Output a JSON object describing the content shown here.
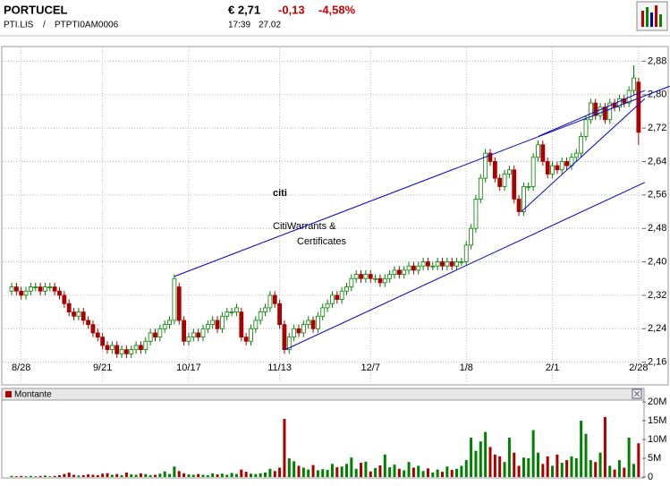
{
  "header": {
    "name": "PORTUCEL",
    "symbol": "PTI.LIS",
    "separator": "/",
    "isin": "PTPTI0AM0006",
    "price": "€ 2,71",
    "change": "-0,13",
    "change_pct": "-4,58%",
    "time": "17:39",
    "date": "27.02"
  },
  "chart_data": [
    {
      "type": "candlestick",
      "up_color": "#008000",
      "down_color": "#aa0000",
      "line_color": "#0000cc",
      "grid": true,
      "watermark": [
        "citi",
        "CitiWarrants &",
        "Certificates"
      ],
      "ylim": [
        2.11,
        2.915
      ],
      "yticks": [
        {
          "value": 2.16,
          "label": "2,16"
        },
        {
          "value": 2.24,
          "label": "2,24"
        },
        {
          "value": 2.32,
          "label": "2,32"
        },
        {
          "value": 2.4,
          "label": "2,40"
        },
        {
          "value": 2.48,
          "label": "2,48"
        },
        {
          "value": 2.56,
          "label": "2,56"
        },
        {
          "value": 2.64,
          "label": "2,64"
        },
        {
          "value": 2.72,
          "label": "2,72"
        },
        {
          "value": 2.8,
          "label": "2,80"
        },
        {
          "value": 2.88,
          "label": "2,88"
        }
      ],
      "categories": [
        null,
        null,
        "8/28",
        null,
        null,
        null,
        null,
        null,
        null,
        null,
        null,
        null,
        null,
        null,
        null,
        null,
        null,
        null,
        null,
        "9/21",
        null,
        null,
        null,
        null,
        null,
        null,
        null,
        null,
        null,
        null,
        null,
        null,
        null,
        null,
        null,
        null,
        null,
        "10/17",
        null,
        null,
        null,
        null,
        null,
        null,
        null,
        null,
        null,
        null,
        null,
        null,
        null,
        null,
        null,
        null,
        null,
        null,
        "11/13",
        null,
        null,
        null,
        null,
        null,
        null,
        null,
        null,
        null,
        null,
        null,
        null,
        null,
        null,
        null,
        null,
        null,
        null,
        "12/7",
        null,
        null,
        null,
        null,
        null,
        null,
        null,
        null,
        null,
        null,
        null,
        null,
        null,
        null,
        null,
        null,
        null,
        null,
        null,
        "1/8",
        null,
        null,
        null,
        null,
        null,
        null,
        null,
        null,
        null,
        null,
        null,
        null,
        null,
        null,
        null,
        null,
        null,
        "2/1",
        null,
        null,
        null,
        null,
        null,
        null,
        null,
        null,
        null,
        null,
        null,
        null,
        null,
        null,
        null,
        null,
        null,
        "2/28"
      ],
      "open": [
        2.33,
        2.34,
        2.33,
        2.32,
        2.33,
        2.34,
        2.34,
        2.33,
        2.34,
        2.34,
        2.33,
        2.32,
        2.3,
        2.28,
        2.27,
        2.28,
        2.26,
        2.25,
        2.23,
        2.22,
        2.2,
        2.19,
        2.2,
        2.18,
        2.19,
        2.18,
        2.19,
        2.2,
        2.19,
        2.21,
        2.23,
        2.22,
        2.24,
        2.25,
        2.26,
        2.34,
        2.26,
        2.21,
        2.22,
        2.23,
        2.22,
        2.24,
        2.25,
        2.26,
        2.24,
        2.27,
        2.28,
        2.28,
        2.28,
        2.22,
        2.21,
        2.24,
        2.26,
        2.28,
        2.29,
        2.32,
        2.3,
        2.25,
        2.19,
        2.22,
        2.24,
        2.23,
        2.25,
        2.26,
        2.24,
        2.27,
        2.29,
        2.3,
        2.32,
        2.31,
        2.33,
        2.34,
        2.36,
        2.37,
        2.36,
        2.37,
        2.36,
        2.36,
        2.35,
        2.36,
        2.37,
        2.38,
        2.37,
        2.38,
        2.39,
        2.38,
        2.39,
        2.4,
        2.39,
        2.39,
        2.4,
        2.39,
        2.4,
        2.39,
        2.4,
        2.4,
        2.44,
        2.48,
        2.55,
        2.6,
        2.66,
        2.64,
        2.6,
        2.58,
        2.61,
        2.62,
        2.55,
        2.52,
        2.58,
        2.58,
        2.65,
        2.68,
        2.64,
        2.61,
        2.63,
        2.62,
        2.64,
        2.63,
        2.65,
        2.66,
        2.7,
        2.74,
        2.78,
        2.75,
        2.77,
        2.74,
        2.78,
        2.77,
        2.79,
        2.78,
        2.81,
        2.83
      ],
      "high": [
        2.35,
        2.35,
        2.34,
        2.34,
        2.35,
        2.35,
        2.35,
        2.35,
        2.35,
        2.35,
        2.34,
        2.33,
        2.31,
        2.29,
        2.29,
        2.29,
        2.27,
        2.26,
        2.24,
        2.23,
        2.21,
        2.21,
        2.21,
        2.2,
        2.2,
        2.2,
        2.21,
        2.21,
        2.22,
        2.24,
        2.24,
        2.25,
        2.26,
        2.27,
        2.37,
        2.35,
        2.27,
        2.23,
        2.24,
        2.24,
        2.25,
        2.26,
        2.27,
        2.27,
        2.28,
        2.29,
        2.29,
        2.3,
        2.29,
        2.23,
        2.25,
        2.27,
        2.29,
        2.3,
        2.33,
        2.33,
        2.31,
        2.26,
        2.23,
        2.25,
        2.25,
        2.26,
        2.27,
        2.27,
        2.28,
        2.3,
        2.31,
        2.33,
        2.33,
        2.34,
        2.35,
        2.37,
        2.38,
        2.38,
        2.38,
        2.38,
        2.37,
        2.37,
        2.37,
        2.38,
        2.39,
        2.39,
        2.39,
        2.4,
        2.4,
        2.4,
        2.41,
        2.41,
        2.4,
        2.41,
        2.41,
        2.41,
        2.41,
        2.41,
        2.41,
        2.45,
        2.49,
        2.56,
        2.61,
        2.67,
        2.67,
        2.65,
        2.61,
        2.62,
        2.63,
        2.63,
        2.56,
        2.59,
        2.59,
        2.66,
        2.69,
        2.69,
        2.65,
        2.64,
        2.64,
        2.65,
        2.65,
        2.66,
        2.67,
        2.71,
        2.75,
        2.79,
        2.79,
        2.78,
        2.78,
        2.79,
        2.79,
        2.8,
        2.8,
        2.82,
        2.87,
        2.84
      ],
      "low": [
        2.32,
        2.32,
        2.31,
        2.31,
        2.32,
        2.33,
        2.32,
        2.32,
        2.33,
        2.32,
        2.31,
        2.29,
        2.27,
        2.26,
        2.26,
        2.25,
        2.24,
        2.22,
        2.21,
        2.19,
        2.18,
        2.18,
        2.17,
        2.17,
        2.17,
        2.17,
        2.18,
        2.18,
        2.18,
        2.2,
        2.21,
        2.21,
        2.23,
        2.24,
        2.25,
        2.25,
        2.2,
        2.2,
        2.21,
        2.21,
        2.21,
        2.23,
        2.24,
        2.23,
        2.23,
        2.26,
        2.27,
        2.27,
        2.21,
        2.2,
        2.2,
        2.23,
        2.25,
        2.27,
        2.28,
        2.29,
        2.24,
        2.18,
        2.18,
        2.21,
        2.22,
        2.22,
        2.24,
        2.23,
        2.23,
        2.26,
        2.28,
        2.29,
        2.3,
        2.3,
        2.32,
        2.33,
        2.35,
        2.35,
        2.35,
        2.35,
        2.35,
        2.34,
        2.34,
        2.35,
        2.36,
        2.36,
        2.36,
        2.37,
        2.37,
        2.37,
        2.38,
        2.38,
        2.38,
        2.38,
        2.38,
        2.38,
        2.38,
        2.38,
        2.39,
        2.39,
        2.43,
        2.47,
        2.54,
        2.59,
        2.63,
        2.59,
        2.57,
        2.57,
        2.6,
        2.54,
        2.51,
        2.51,
        2.57,
        2.57,
        2.64,
        2.63,
        2.6,
        2.6,
        2.61,
        2.61,
        2.62,
        2.62,
        2.64,
        2.65,
        2.69,
        2.73,
        2.74,
        2.74,
        2.73,
        2.73,
        2.76,
        2.76,
        2.77,
        2.77,
        2.8,
        2.68
      ],
      "close": [
        2.34,
        2.33,
        2.32,
        2.33,
        2.34,
        2.34,
        2.33,
        2.34,
        2.34,
        2.33,
        2.32,
        2.3,
        2.28,
        2.27,
        2.28,
        2.26,
        2.25,
        2.23,
        2.22,
        2.2,
        2.19,
        2.2,
        2.18,
        2.19,
        2.18,
        2.19,
        2.2,
        2.19,
        2.21,
        2.23,
        2.22,
        2.24,
        2.25,
        2.26,
        2.36,
        2.26,
        2.21,
        2.22,
        2.23,
        2.22,
        2.24,
        2.25,
        2.26,
        2.24,
        2.27,
        2.28,
        2.28,
        2.29,
        2.22,
        2.21,
        2.24,
        2.26,
        2.28,
        2.29,
        2.32,
        2.3,
        2.25,
        2.19,
        2.22,
        2.24,
        2.23,
        2.25,
        2.26,
        2.24,
        2.27,
        2.29,
        2.3,
        2.32,
        2.31,
        2.33,
        2.34,
        2.36,
        2.37,
        2.36,
        2.37,
        2.36,
        2.36,
        2.35,
        2.36,
        2.37,
        2.38,
        2.37,
        2.38,
        2.39,
        2.38,
        2.39,
        2.4,
        2.39,
        2.39,
        2.4,
        2.39,
        2.4,
        2.39,
        2.4,
        2.4,
        2.44,
        2.48,
        2.55,
        2.6,
        2.66,
        2.64,
        2.6,
        2.58,
        2.61,
        2.62,
        2.55,
        2.52,
        2.58,
        2.58,
        2.65,
        2.68,
        2.64,
        2.61,
        2.63,
        2.62,
        2.64,
        2.63,
        2.65,
        2.66,
        2.7,
        2.74,
        2.78,
        2.75,
        2.77,
        2.74,
        2.78,
        2.77,
        2.79,
        2.78,
        2.81,
        2.84,
        2.71
      ],
      "trendlines": [
        {
          "x": [
            34,
            137.5
          ],
          "y": [
            2.365,
            2.82
          ]
        },
        {
          "x": [
            57.2,
            132.3
          ],
          "y": [
            2.19,
            2.59
          ]
        },
        {
          "x": [
            106.5,
            132.3
          ],
          "y": [
            2.52,
            2.79
          ]
        },
        {
          "x": [
            110,
            132.3
          ],
          "y": [
            2.7,
            2.81
          ]
        }
      ]
    },
    {
      "type": "bar",
      "ylim": [
        0,
        20.5
      ],
      "yticks": [
        0,
        {
          "value": 5,
          "label": "5M"
        },
        {
          "value": 10,
          "label": "10M"
        },
        {
          "value": 15,
          "label": "15M"
        },
        {
          "value": 20,
          "label": "20M"
        }
      ],
      "series": [
        {
          "name": "Montante",
          "color": "#aa0000",
          "up_color": "#008000",
          "values": [
            0.3,
            0.2,
            0.3,
            0.2,
            0.3,
            0.2,
            0.3,
            0.4,
            0.2,
            0.3,
            0.5,
            0.8,
            1.2,
            0.6,
            0.4,
            0.5,
            0.7,
            0.6,
            0.5,
            0.9,
            1.0,
            0.6,
            0.8,
            0.5,
            1.2,
            0.7,
            0.6,
            1.0,
            0.8,
            0.5,
            0.6,
            0.9,
            1.5,
            0.8,
            2.8,
            1.6,
            1.0,
            0.7,
            0.6,
            0.8,
            0.6,
            0.5,
            1.0,
            0.7,
            0.9,
            0.6,
            1.1,
            0.8,
            2.0,
            1.4,
            0.9,
            0.8,
            1.0,
            1.2,
            2.2,
            1.6,
            2.5,
            15.5,
            5.0,
            4.2,
            3.0,
            2.5,
            2.0,
            3.2,
            1.8,
            2.1,
            1.9,
            3.5,
            2.6,
            2.8,
            3.5,
            5.2,
            2.2,
            3.8,
            4.1,
            1.5,
            2.4,
            3.1,
            6.0,
            2.6,
            3.3,
            2.2,
            1.8,
            4.0,
            2.5,
            3.0,
            1.6,
            2.3,
            1.2,
            2.0,
            1.4,
            2.8,
            1.9,
            2.2,
            3.0,
            4.5,
            10.5,
            7.0,
            9.5,
            12.0,
            8.0,
            6.0,
            5.5,
            4.0,
            10.5,
            6.5,
            3.0,
            5.2,
            5.0,
            12.5,
            6.5,
            3.5,
            5.5,
            3.0,
            6.0,
            3.8,
            4.5,
            5.5,
            5.0,
            15.0,
            11.5,
            4.5,
            4.0,
            6.5,
            16.0,
            3.0,
            2.0,
            4.5,
            2.5,
            10.5,
            3.5,
            9.0
          ]
        }
      ]
    }
  ]
}
